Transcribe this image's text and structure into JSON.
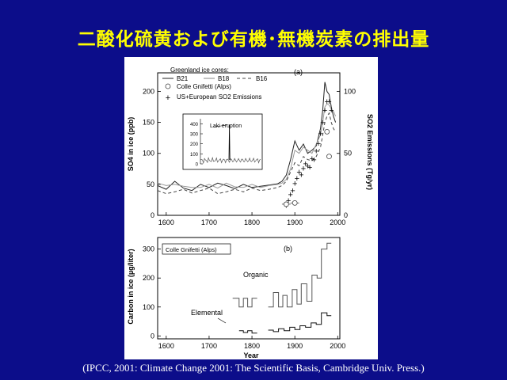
{
  "slide": {
    "title": "二酸化硫黄および有機･無機炭素の排出量",
    "citation": "(IPCC, 2001: Climate Change 2001: The Scientific Basis, Cambridge Univ. Press.)"
  },
  "chart_data": [
    {
      "type": "line",
      "panel_label": "(a)",
      "ylabel": "SO4 in ice (ppb)",
      "y2label": "SO2 Emissions (Tg/yr)",
      "xlim": [
        1580,
        2005
      ],
      "ylim": [
        0,
        230
      ],
      "y2lim": [
        0,
        115
      ],
      "x_ticks": [
        1600,
        1700,
        1800,
        1900,
        2000
      ],
      "y_ticks": [
        0,
        50,
        100,
        150,
        200
      ],
      "y2_ticks": [
        0,
        50,
        100
      ],
      "legend": {
        "header": "Greenland ice cores:",
        "items": [
          "B21",
          "B18",
          "B16",
          "Colle Gnifetti (Alps)",
          "US+European SO2 Emissions"
        ]
      },
      "series": [
        {
          "name": "B21",
          "style": "solid",
          "color": "#222222",
          "x": [
            1580,
            1600,
            1620,
            1640,
            1660,
            1680,
            1700,
            1720,
            1740,
            1760,
            1780,
            1800,
            1820,
            1840,
            1860,
            1870,
            1880,
            1890,
            1900,
            1910,
            1920,
            1930,
            1940,
            1950,
            1960,
            1965,
            1970,
            1975,
            1980,
            1985,
            1990,
            1995
          ],
          "y": [
            48,
            42,
            55,
            44,
            40,
            50,
            45,
            52,
            48,
            43,
            50,
            45,
            47,
            49,
            51,
            55,
            65,
            90,
            120,
            105,
            115,
            100,
            105,
            112,
            140,
            170,
            215,
            200,
            195,
            175,
            160,
            150
          ]
        },
        {
          "name": "B18",
          "style": "solid",
          "color": "#999999",
          "x": [
            1580,
            1600,
            1620,
            1640,
            1660,
            1680,
            1700,
            1720,
            1740,
            1760,
            1780,
            1800,
            1820,
            1840,
            1860,
            1870,
            1880,
            1890,
            1900,
            1910,
            1920,
            1930,
            1940,
            1950,
            1960,
            1965,
            1970,
            1975,
            1980,
            1985,
            1990,
            1995
          ],
          "y": [
            52,
            48,
            50,
            47,
            45,
            45,
            50,
            44,
            52,
            46,
            45,
            50,
            45,
            48,
            50,
            52,
            58,
            75,
            105,
            100,
            110,
            105,
            100,
            115,
            130,
            150,
            175,
            180,
            178,
            172,
            168,
            160
          ]
        },
        {
          "name": "B16",
          "style": "dashed",
          "color": "#444444",
          "x": [
            1580,
            1600,
            1620,
            1640,
            1660,
            1680,
            1700,
            1720,
            1740,
            1760,
            1780,
            1800,
            1820,
            1840,
            1860,
            1870,
            1880,
            1890,
            1900,
            1910,
            1920,
            1930,
            1940,
            1950,
            1960,
            1965,
            1970,
            1975,
            1980,
            1985,
            1990,
            1995
          ],
          "y": [
            40,
            35,
            38,
            42,
            36,
            40,
            44,
            35,
            38,
            42,
            38,
            44,
            40,
            42,
            45,
            48,
            55,
            70,
            85,
            80,
            95,
            90,
            88,
            95,
            110,
            130,
            150,
            160,
            165,
            150,
            140,
            135
          ]
        }
      ],
      "emissions_series": {
        "name": "US+European SO2 Emissions",
        "marker": "+",
        "x": [
          1880,
          1885,
          1890,
          1895,
          1900,
          1905,
          1910,
          1915,
          1920,
          1925,
          1930,
          1935,
          1940,
          1945,
          1950,
          1955,
          1960,
          1965,
          1970,
          1975,
          1980,
          1985
        ],
        "y": [
          8,
          12,
          17,
          20,
          26,
          30,
          35,
          33,
          38,
          42,
          40,
          39,
          46,
          45,
          52,
          58,
          66,
          75,
          85,
          92,
          92,
          85
        ]
      },
      "colle_gnifetti_points": [
        {
          "x": 1880,
          "y": 18,
          "xerr": 10
        },
        {
          "x": 1900,
          "y": 20,
          "xerr": 10
        },
        {
          "x": 1975,
          "y": 135,
          "xerr": 0
        },
        {
          "x": 1980,
          "y": 95,
          "xerr": 0
        }
      ],
      "inset": {
        "title": "Laki eruption",
        "y_ticks": [
          0,
          100,
          200,
          300,
          400
        ],
        "ylim": [
          0,
          450
        ],
        "xlim": [
          1600,
          1980
        ],
        "spike": {
          "x": 1783,
          "y": 390
        }
      }
    },
    {
      "type": "step",
      "panel_label": "(b)",
      "box_label": "Colle Gnifetti (Alps)",
      "ylabel": "Carbon in ice (µg/liter)",
      "xlabel": "Year",
      "xlim": [
        1580,
        2005
      ],
      "ylim": [
        -10,
        340
      ],
      "x_ticks": [
        1600,
        1700,
        1800,
        1900,
        2000
      ],
      "y_ticks": [
        0,
        100,
        200,
        300
      ],
      "series": [
        {
          "name": "Organic",
          "x": [
            1755,
            1770,
            1770,
            1780,
            1780,
            1790,
            1790,
            1800,
            1800,
            1812
          ],
          "y": [
            130,
            130,
            100,
            100,
            130,
            130,
            100,
            100,
            130,
            130
          ]
        },
        {
          "name": "Organic",
          "x": [
            1838,
            1850,
            1850,
            1862,
            1862,
            1872,
            1872,
            1882,
            1882,
            1894,
            1894,
            1905,
            1905,
            1915,
            1915,
            1928,
            1928,
            1940,
            1940,
            1952,
            1952,
            1962,
            1962,
            1975,
            1975,
            1985
          ],
          "y": [
            100,
            100,
            150,
            150,
            100,
            100,
            140,
            140,
            100,
            100,
            160,
            160,
            110,
            110,
            180,
            180,
            120,
            120,
            210,
            210,
            200,
            200,
            300,
            300,
            320,
            320
          ]
        },
        {
          "name": "Elemental",
          "x": [
            1770,
            1780,
            1780,
            1790,
            1790,
            1800,
            1800,
            1812
          ],
          "y": [
            18,
            18,
            12,
            12,
            18,
            18,
            10,
            10
          ]
        },
        {
          "name": "Elemental",
          "x": [
            1838,
            1850,
            1850,
            1862,
            1862,
            1875,
            1875,
            1888,
            1888,
            1900,
            1900,
            1912,
            1912,
            1925,
            1925,
            1938,
            1938,
            1950,
            1950,
            1962,
            1962,
            1975,
            1975,
            1985
          ],
          "y": [
            20,
            20,
            15,
            15,
            25,
            25,
            18,
            18,
            30,
            30,
            22,
            22,
            35,
            35,
            30,
            30,
            45,
            45,
            40,
            40,
            80,
            80,
            70,
            70
          ]
        }
      ],
      "annotations": [
        "Organic",
        "Elemental"
      ]
    }
  ]
}
